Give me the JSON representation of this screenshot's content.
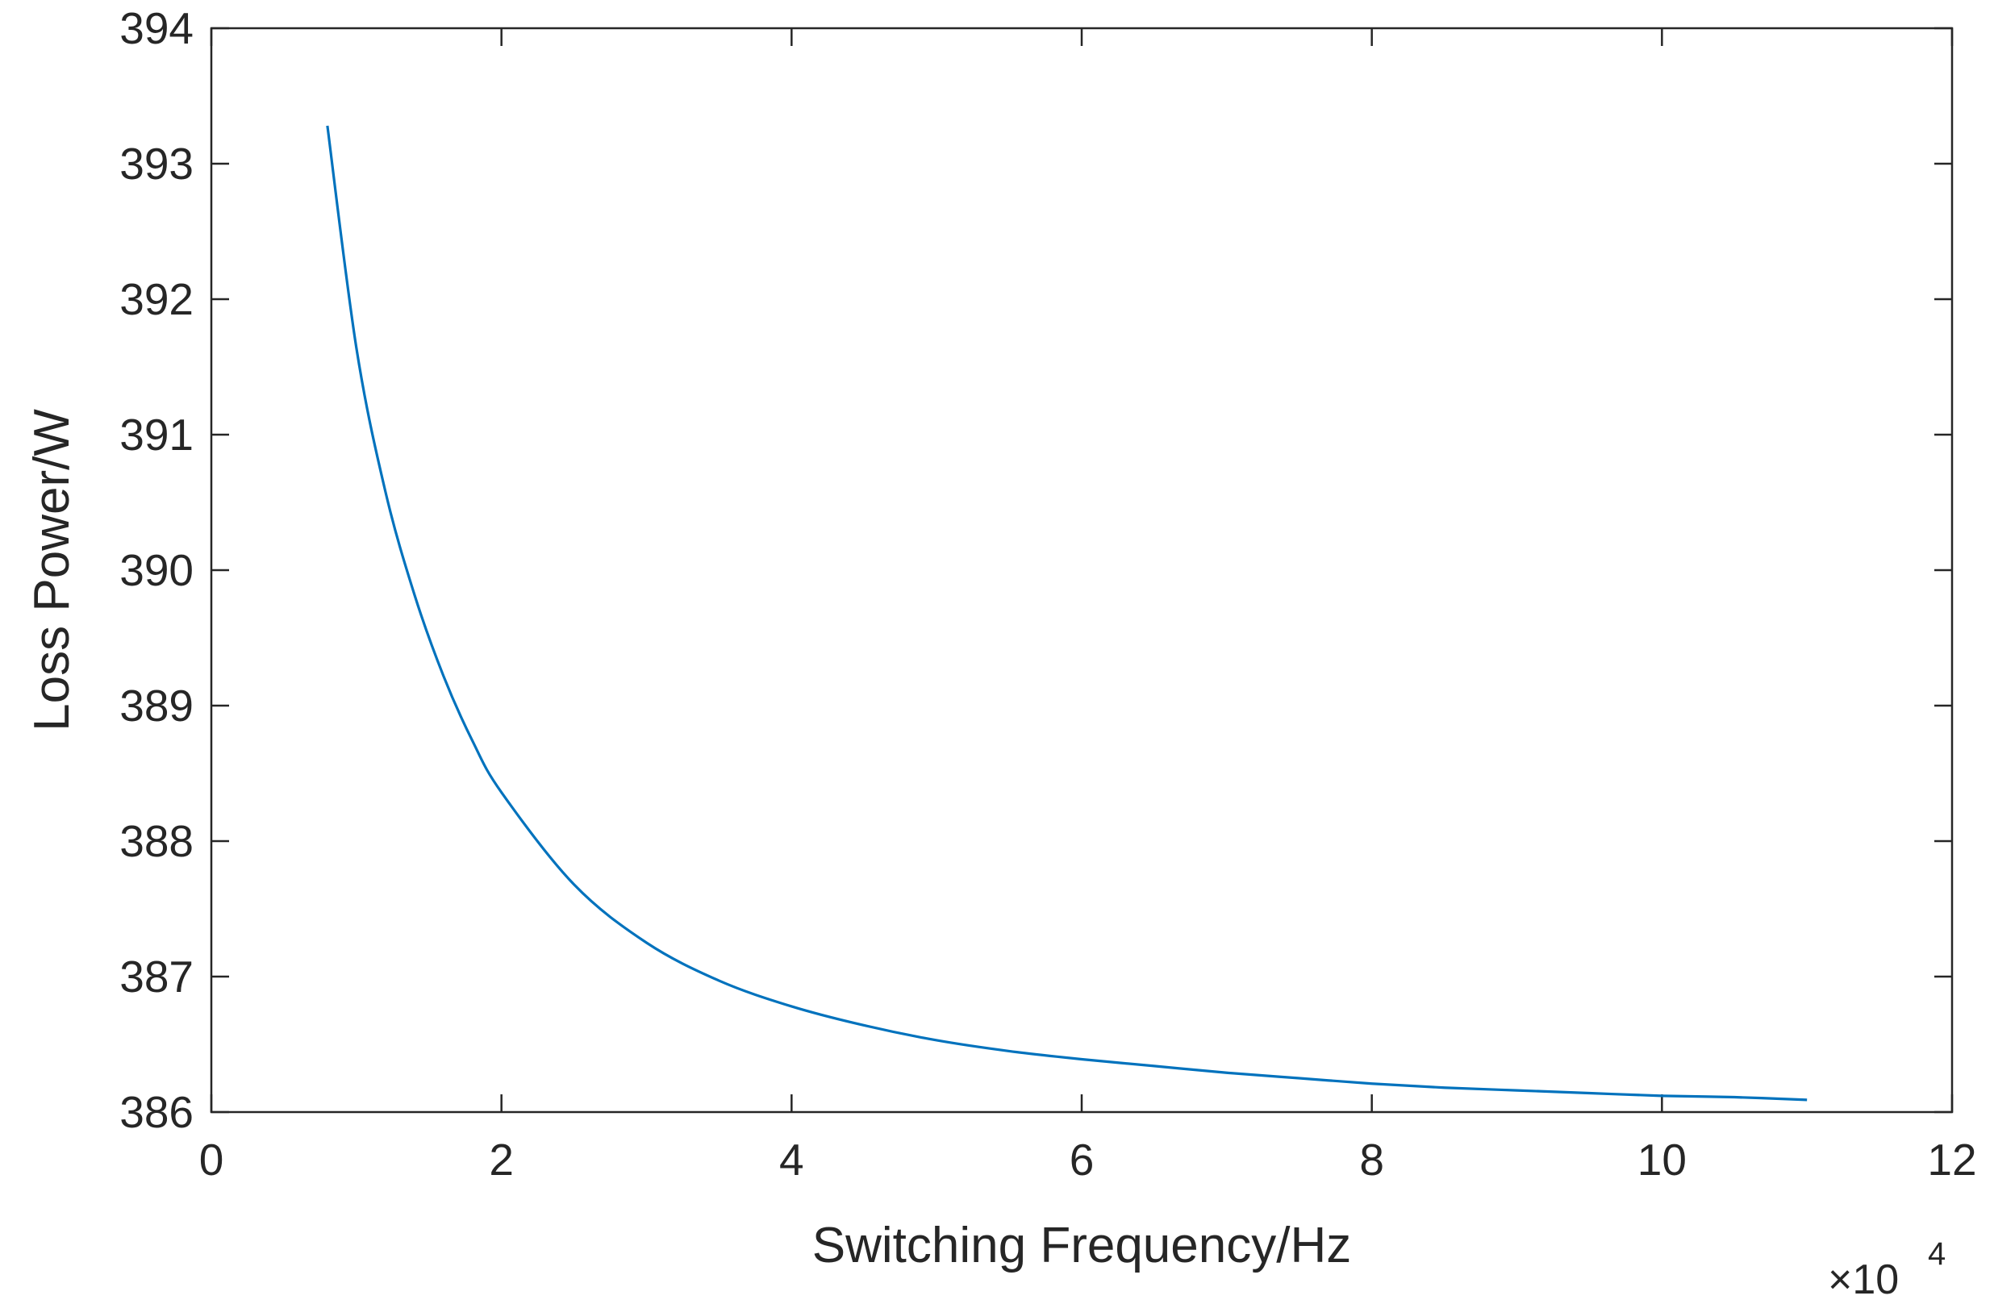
{
  "chart_data": {
    "type": "line",
    "title": "",
    "xlabel": "Switching Frequency/Hz",
    "ylabel": "Loss Power/W",
    "x_exponent_label": "×10",
    "x_exponent_power": "4",
    "xlim": [
      0,
      12
    ],
    "ylim": [
      386,
      394
    ],
    "xticks": [
      "0",
      "2",
      "4",
      "6",
      "8",
      "10",
      "12"
    ],
    "yticks": [
      "386",
      "387",
      "388",
      "389",
      "390",
      "391",
      "392",
      "393",
      "394"
    ],
    "grid": false,
    "legend": "none",
    "series": [
      {
        "color": "#0072BD",
        "x": [
          0.8,
          1.0,
          1.2,
          1.4,
          1.6,
          1.8,
          2.0,
          2.5,
          3.0,
          3.5,
          4.0,
          4.5,
          5.0,
          5.5,
          6.0,
          6.5,
          7.0,
          7.5,
          8.0,
          8.5,
          9.0,
          9.5,
          10.0,
          10.5,
          11.0
        ],
        "y": [
          393.28,
          391.64,
          390.58,
          389.82,
          389.22,
          388.74,
          388.36,
          387.68,
          387.25,
          386.97,
          386.78,
          386.64,
          386.53,
          386.45,
          386.39,
          386.34,
          386.29,
          386.25,
          386.21,
          386.18,
          386.16,
          386.14,
          386.12,
          386.11,
          386.09
        ]
      }
    ]
  }
}
